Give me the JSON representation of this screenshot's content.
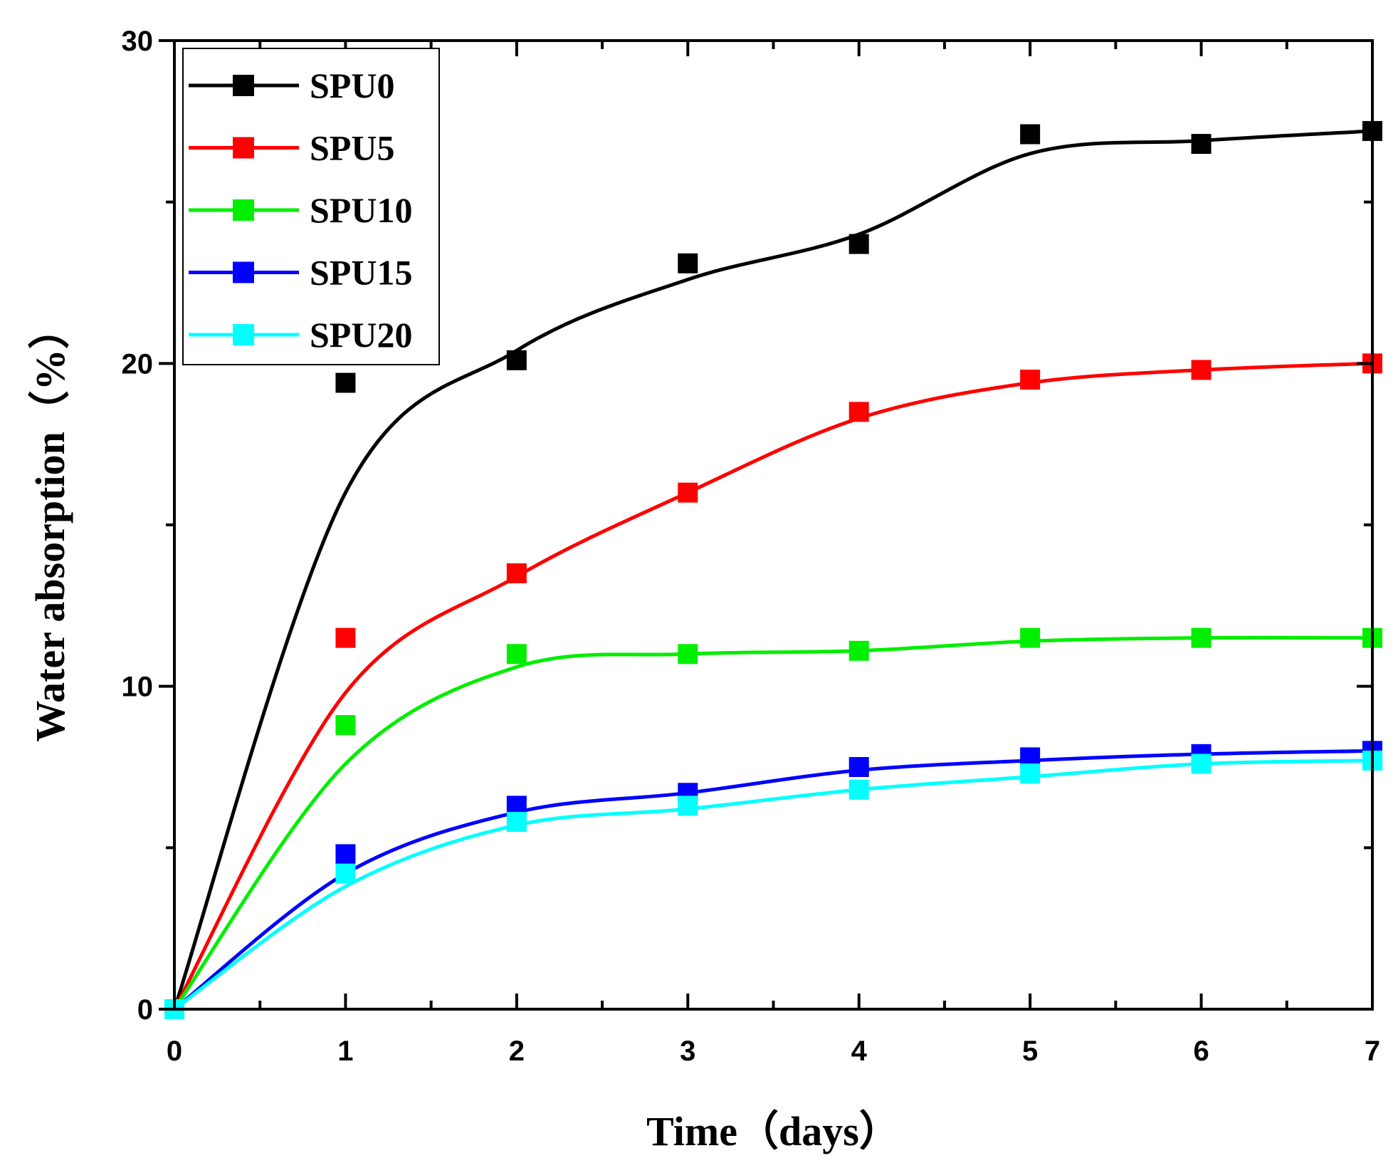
{
  "chart_data": {
    "type": "line",
    "title": "",
    "xlabel": "Time（days）",
    "ylabel": "Water absorption（%）",
    "xlim": [
      0,
      7
    ],
    "ylim": [
      0,
      30
    ],
    "x_ticks": [
      0,
      1,
      2,
      3,
      4,
      5,
      6,
      7
    ],
    "x_tick_labels": [
      "0",
      "1",
      "2",
      "3",
      "4",
      "5",
      "6",
      "7"
    ],
    "y_ticks": [
      0,
      10,
      20,
      30
    ],
    "y_tick_labels": [
      "0",
      "10",
      "20",
      "30"
    ],
    "x_minor_step": 0.5,
    "y_minor_step": 5,
    "grid": false,
    "legend_position": "top-left",
    "markers": "square",
    "smoothed_fit_lines": true,
    "x": [
      0,
      1,
      2,
      3,
      4,
      5,
      6,
      7
    ],
    "series": [
      {
        "name": "SPU0",
        "color": "#000000",
        "points": [
          0,
          19.4,
          20.1,
          23.1,
          23.7,
          27.1,
          26.8,
          27.2
        ],
        "curve": [
          0,
          16.0,
          20.4,
          22.6,
          24.0,
          26.5,
          26.9,
          27.2
        ]
      },
      {
        "name": "SPU5",
        "color": "#ff0000",
        "points": [
          0,
          11.5,
          13.5,
          16.0,
          18.5,
          19.5,
          19.8,
          20.0
        ],
        "curve": [
          0,
          9.8,
          13.4,
          16.0,
          18.3,
          19.4,
          19.8,
          20.0
        ]
      },
      {
        "name": "SPU10",
        "color": "#00ee00",
        "points": [
          0,
          8.8,
          11.0,
          11.0,
          11.1,
          11.5,
          11.5,
          11.5
        ],
        "curve": [
          0,
          7.6,
          10.6,
          11.0,
          11.1,
          11.4,
          11.5,
          11.5
        ]
      },
      {
        "name": "SPU15",
        "color": "#0000ff",
        "points": [
          0,
          4.8,
          6.3,
          6.7,
          7.5,
          7.8,
          7.9,
          8.0
        ],
        "curve": [
          0,
          4.2,
          6.1,
          6.7,
          7.4,
          7.7,
          7.9,
          8.0
        ]
      },
      {
        "name": "SPU20",
        "color": "#00ffff",
        "points": [
          0,
          4.2,
          5.8,
          6.3,
          6.8,
          7.3,
          7.6,
          7.7
        ],
        "curve": [
          0,
          3.8,
          5.7,
          6.2,
          6.8,
          7.2,
          7.6,
          7.7
        ]
      }
    ]
  }
}
